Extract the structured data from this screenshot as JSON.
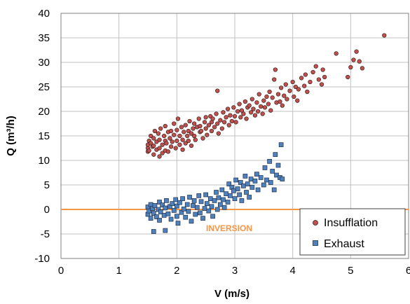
{
  "chart_data": {
    "type": "scatter",
    "title": "",
    "xlabel": "V (m/s)",
    "ylabel": "Q (m³/h)",
    "xlim": [
      0,
      6
    ],
    "ylim": [
      -10,
      40
    ],
    "x_ticks": [
      "0",
      "1",
      "2",
      "3",
      "4",
      "5",
      "6"
    ],
    "y_ticks": [
      "40",
      "35",
      "30",
      "25",
      "20",
      "15",
      "10",
      "5",
      "0",
      "-5",
      "-10"
    ],
    "grid": true,
    "legend_position": "bottom-right",
    "series": [
      {
        "name": "Insufflation",
        "marker": "circle",
        "color": "#c0504d",
        "points": [
          [
            1.5,
            11.8
          ],
          [
            1.5,
            12.5
          ],
          [
            1.5,
            13.2
          ],
          [
            1.52,
            14.0
          ],
          [
            1.52,
            12.0
          ],
          [
            1.55,
            13.5
          ],
          [
            1.55,
            15.0
          ],
          [
            1.58,
            12.8
          ],
          [
            1.6,
            11.2
          ],
          [
            1.6,
            13.0
          ],
          [
            1.6,
            14.5
          ],
          [
            1.62,
            16.0
          ],
          [
            1.65,
            12.2
          ],
          [
            1.65,
            13.8
          ],
          [
            1.68,
            15.5
          ],
          [
            1.7,
            10.8
          ],
          [
            1.7,
            12.5
          ],
          [
            1.7,
            14.2
          ],
          [
            1.72,
            16.5
          ],
          [
            1.75,
            11.5
          ],
          [
            1.75,
            13.2
          ],
          [
            1.78,
            15.0
          ],
          [
            1.8,
            12.0
          ],
          [
            1.8,
            14.0
          ],
          [
            1.8,
            17.0
          ],
          [
            1.82,
            13.5
          ],
          [
            1.85,
            15.8
          ],
          [
            1.85,
            11.8
          ],
          [
            1.88,
            14.5
          ],
          [
            1.9,
            12.8
          ],
          [
            1.9,
            16.0
          ],
          [
            1.92,
            13.8
          ],
          [
            1.95,
            15.2
          ],
          [
            1.95,
            17.5
          ],
          [
            1.98,
            12.5
          ],
          [
            2.0,
            14.0
          ],
          [
            2.0,
            16.2
          ],
          [
            2.02,
            18.5
          ],
          [
            2.05,
            13.2
          ],
          [
            2.05,
            15.0
          ],
          [
            2.08,
            16.8
          ],
          [
            2.1,
            14.2
          ],
          [
            2.1,
            12.2
          ],
          [
            2.12,
            15.8
          ],
          [
            2.15,
            13.5
          ],
          [
            2.15,
            17.2
          ],
          [
            2.18,
            15.0
          ],
          [
            2.2,
            16.0
          ],
          [
            2.2,
            14.0
          ],
          [
            2.22,
            18.0
          ],
          [
            2.25,
            15.5
          ],
          [
            2.25,
            13.0
          ],
          [
            2.28,
            16.5
          ],
          [
            2.3,
            17.5
          ],
          [
            2.3,
            15.0
          ],
          [
            2.32,
            14.2
          ],
          [
            2.35,
            16.8
          ],
          [
            2.38,
            18.5
          ],
          [
            2.4,
            15.8
          ],
          [
            2.4,
            17.0
          ],
          [
            2.42,
            16.0
          ],
          [
            2.45,
            14.5
          ],
          [
            2.48,
            17.8
          ],
          [
            2.5,
            16.5
          ],
          [
            2.5,
            18.8
          ],
          [
            2.52,
            15.2
          ],
          [
            2.55,
            17.2
          ],
          [
            2.58,
            19.0
          ],
          [
            2.6,
            16.0
          ],
          [
            2.6,
            17.8
          ],
          [
            2.62,
            18.5
          ],
          [
            2.65,
            16.8
          ],
          [
            2.68,
            19.5
          ],
          [
            2.7,
            17.5
          ],
          [
            2.7,
            24.2
          ],
          [
            2.72,
            15.5
          ],
          [
            2.75,
            18.2
          ],
          [
            2.78,
            16.5
          ],
          [
            2.8,
            19.8
          ],
          [
            2.82,
            17.8
          ],
          [
            2.85,
            18.8
          ],
          [
            2.88,
            20.5
          ],
          [
            2.9,
            17.2
          ],
          [
            2.92,
            19.2
          ],
          [
            2.95,
            18.0
          ],
          [
            2.98,
            20.8
          ],
          [
            3.0,
            19.0
          ],
          [
            3.02,
            17.8
          ],
          [
            3.05,
            20.0
          ],
          [
            3.08,
            21.5
          ],
          [
            3.1,
            18.8
          ],
          [
            3.12,
            20.2
          ],
          [
            3.15,
            19.5
          ],
          [
            3.18,
            22.0
          ],
          [
            3.2,
            18.5
          ],
          [
            3.22,
            20.8
          ],
          [
            3.25,
            21.2
          ],
          [
            3.28,
            19.8
          ],
          [
            3.3,
            22.5
          ],
          [
            3.32,
            20.5
          ],
          [
            3.35,
            19.2
          ],
          [
            3.38,
            21.8
          ],
          [
            3.4,
            20.0
          ],
          [
            3.42,
            23.5
          ],
          [
            3.45,
            21.0
          ],
          [
            3.48,
            19.5
          ],
          [
            3.5,
            22.2
          ],
          [
            3.52,
            20.8
          ],
          [
            3.55,
            23.0
          ],
          [
            3.58,
            21.5
          ],
          [
            3.6,
            24.0
          ],
          [
            3.62,
            20.2
          ],
          [
            3.65,
            22.8
          ],
          [
            3.68,
            26.5
          ],
          [
            3.7,
            28.5
          ],
          [
            3.72,
            21.8
          ],
          [
            3.75,
            23.5
          ],
          [
            3.78,
            22.0
          ],
          [
            3.8,
            24.8
          ],
          [
            3.82,
            21.2
          ],
          [
            3.85,
            23.2
          ],
          [
            3.88,
            25.5
          ],
          [
            3.9,
            22.5
          ],
          [
            3.95,
            24.2
          ],
          [
            4.0,
            26.0
          ],
          [
            4.02,
            23.0
          ],
          [
            4.05,
            25.0
          ],
          [
            4.08,
            22.2
          ],
          [
            4.1,
            24.5
          ],
          [
            4.15,
            26.8
          ],
          [
            4.2,
            25.2
          ],
          [
            4.22,
            27.5
          ],
          [
            4.25,
            24.0
          ],
          [
            4.3,
            26.0
          ],
          [
            4.35,
            28.0
          ],
          [
            4.4,
            29.2
          ],
          [
            4.45,
            26.5
          ],
          [
            4.5,
            25.5
          ],
          [
            4.52,
            28.5
          ],
          [
            4.55,
            27.0
          ],
          [
            4.75,
            31.8
          ],
          [
            4.95,
            27.0
          ],
          [
            5.0,
            29.0
          ],
          [
            5.05,
            30.5
          ],
          [
            5.1,
            32.2
          ],
          [
            5.15,
            30.2
          ],
          [
            5.2,
            28.8
          ],
          [
            5.58,
            35.5
          ]
        ]
      },
      {
        "name": "Exhaust",
        "marker": "square",
        "color": "#4f81bd",
        "points": [
          [
            1.5,
            -1.0
          ],
          [
            1.5,
            0.5
          ],
          [
            1.52,
            -0.3
          ],
          [
            1.55,
            1.0
          ],
          [
            1.55,
            -1.8
          ],
          [
            1.58,
            0.2
          ],
          [
            1.6,
            -4.5
          ],
          [
            1.6,
            -0.8
          ],
          [
            1.62,
            0.8
          ],
          [
            1.65,
            -1.5
          ],
          [
            1.68,
            0.0
          ],
          [
            1.7,
            1.5
          ],
          [
            1.7,
            -2.2
          ],
          [
            1.72,
            -0.5
          ],
          [
            1.75,
            0.9
          ],
          [
            1.78,
            -1.2
          ],
          [
            1.8,
            0.3
          ],
          [
            1.8,
            -4.3
          ],
          [
            1.82,
            1.8
          ],
          [
            1.85,
            -0.9
          ],
          [
            1.88,
            0.6
          ],
          [
            1.9,
            -2.0
          ],
          [
            1.92,
            1.2
          ],
          [
            1.95,
            -0.2
          ],
          [
            1.98,
            2.0
          ],
          [
            2.0,
            -1.4
          ],
          [
            2.0,
            0.7
          ],
          [
            2.02,
            -2.8
          ],
          [
            2.05,
            1.4
          ],
          [
            2.08,
            -0.6
          ],
          [
            2.1,
            2.2
          ],
          [
            2.12,
            0.1
          ],
          [
            2.15,
            -1.6
          ],
          [
            2.18,
            1.0
          ],
          [
            2.2,
            -0.4
          ],
          [
            2.22,
            2.5
          ],
          [
            2.25,
            -2.4
          ],
          [
            2.28,
            0.8
          ],
          [
            2.3,
            1.8
          ],
          [
            2.32,
            -1.0
          ],
          [
            2.35,
            0.4
          ],
          [
            2.38,
            2.8
          ],
          [
            2.4,
            -0.7
          ],
          [
            2.42,
            1.6
          ],
          [
            2.45,
            -1.8
          ],
          [
            2.48,
            0.2
          ],
          [
            2.5,
            3.0
          ],
          [
            2.52,
            1.2
          ],
          [
            2.55,
            -0.3
          ],
          [
            2.58,
            2.2
          ],
          [
            2.6,
            0.6
          ],
          [
            2.62,
            -1.4
          ],
          [
            2.65,
            1.8
          ],
          [
            2.68,
            3.5
          ],
          [
            2.7,
            0.0
          ],
          [
            2.72,
            2.4
          ],
          [
            2.75,
            1.0
          ],
          [
            2.78,
            4.0
          ],
          [
            2.8,
            2.0
          ],
          [
            2.82,
            0.4
          ],
          [
            2.85,
            3.2
          ],
          [
            2.88,
            1.5
          ],
          [
            2.9,
            5.2
          ],
          [
            2.92,
            2.8
          ],
          [
            2.95,
            4.5
          ],
          [
            2.98,
            3.8
          ],
          [
            3.0,
            2.2
          ],
          [
            3.02,
            6.0
          ],
          [
            3.05,
            4.2
          ],
          [
            3.08,
            3.0
          ],
          [
            3.1,
            5.5
          ],
          [
            3.12,
            1.8
          ],
          [
            3.15,
            4.8
          ],
          [
            3.18,
            6.8
          ],
          [
            3.2,
            3.5
          ],
          [
            3.22,
            5.2
          ],
          [
            3.25,
            2.5
          ],
          [
            3.28,
            6.2
          ],
          [
            3.3,
            4.5
          ],
          [
            3.35,
            5.8
          ],
          [
            3.38,
            7.2
          ],
          [
            3.4,
            4.0
          ],
          [
            3.45,
            6.5
          ],
          [
            3.5,
            5.0
          ],
          [
            3.52,
            8.5
          ],
          [
            3.55,
            6.0
          ],
          [
            3.6,
            9.8
          ],
          [
            3.62,
            5.5
          ],
          [
            3.65,
            7.8
          ],
          [
            3.68,
            4.0
          ],
          [
            3.7,
            11.2
          ],
          [
            3.72,
            7.0
          ],
          [
            3.75,
            9.0
          ],
          [
            3.78,
            6.5
          ],
          [
            3.8,
            13.2
          ],
          [
            3.82,
            6.2
          ]
        ]
      }
    ],
    "annotations": [
      {
        "text": "INVERSION",
        "color": "#f79646"
      }
    ],
    "reference_line": {
      "y": 0,
      "color": "#f79646"
    }
  },
  "colors": {
    "grid": "#c0c0c0",
    "axis": "#808080",
    "insufflation_fill": "#c0504d",
    "exhaust_fill": "#4f81bd",
    "zero_line": "#f79646"
  }
}
